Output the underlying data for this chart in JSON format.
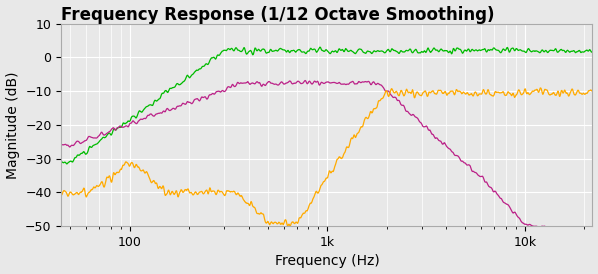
{
  "title": "Frequency Response (1/12 Octave Smoothing)",
  "xlabel": "Frequency (Hz)",
  "ylabel": "Magnitude (dB)",
  "xlim": [
    45,
    22000
  ],
  "ylim": [
    -50,
    10
  ],
  "yticks": [
    -50,
    -40,
    -30,
    -20,
    -10,
    0,
    10
  ],
  "background_color": "#e8e8e8",
  "grid_color": "#ffffff",
  "line_colors": {
    "green": "#00bb00",
    "magenta": "#bb2288",
    "orange": "#ffaa00"
  },
  "title_fontsize": 12,
  "axis_fontsize": 10,
  "tick_fontsize": 9
}
